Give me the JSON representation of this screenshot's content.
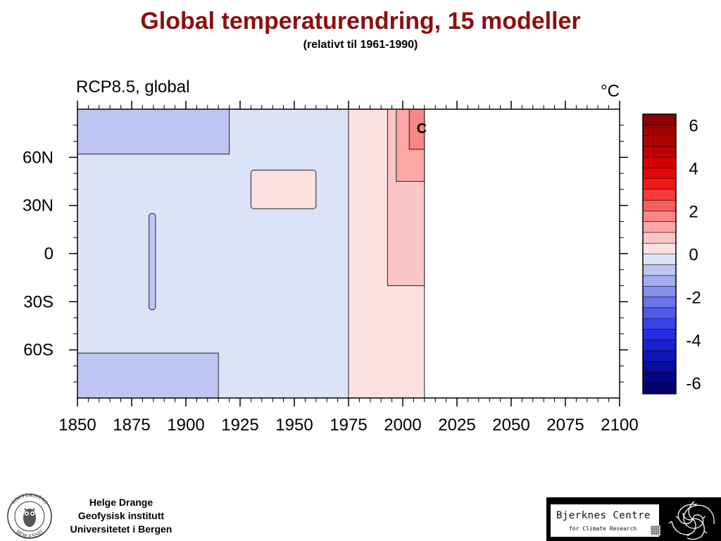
{
  "slide": {
    "title": "Global temperaturendring, 15 modeller",
    "subtitle": "(relativt til 1961-1990)"
  },
  "chart_data": {
    "type": "heatmap",
    "title": "RCP8.5, global",
    "units": "°C",
    "xlim": [
      1850,
      2100
    ],
    "ylim": [
      -90,
      90
    ],
    "x_ticks": [
      1850,
      1875,
      1900,
      1925,
      1950,
      1975,
      2000,
      2025,
      2050,
      2075,
      2100
    ],
    "x_tick_labels": [
      "1850",
      "1875",
      "1900",
      "1925",
      "1950",
      "1975",
      "2000",
      "2025",
      "2050",
      "2075",
      "2100"
    ],
    "y_ticks": [
      60,
      30,
      0,
      -30,
      -60
    ],
    "y_tick_labels": [
      "60N",
      "30N",
      "0",
      "30S",
      "60S"
    ],
    "data_extent_years": [
      1850,
      2010
    ],
    "contour_label": "C",
    "regions": [
      {
        "level": -0.25,
        "from": 1850,
        "to": 1975,
        "lat_from": -90,
        "lat_to": 90
      },
      {
        "level": -0.75,
        "from": 1850,
        "to": 1920,
        "lat_from": 62,
        "lat_to": 90
      },
      {
        "level": -0.75,
        "from": 1850,
        "to": 1915,
        "lat_from": -90,
        "lat_to": -62
      },
      {
        "level": -0.75,
        "from": 1883,
        "to": 1886,
        "lat_from": -35,
        "lat_to": 25
      },
      {
        "level": 0.25,
        "from": 1975,
        "to": 2010,
        "lat_from": -90,
        "lat_to": 90
      },
      {
        "level": 0.25,
        "from": 1930,
        "to": 1960,
        "lat_from": 28,
        "lat_to": 52
      },
      {
        "level": 0.75,
        "from": 1993,
        "to": 2010,
        "lat_from": -20,
        "lat_to": 90
      },
      {
        "level": 1.25,
        "from": 1997,
        "to": 2010,
        "lat_from": 45,
        "lat_to": 90
      },
      {
        "level": 1.75,
        "from": 2003,
        "to": 2010,
        "lat_from": 65,
        "lat_to": 90
      }
    ],
    "colorbar": {
      "min": -6.5,
      "max": 6.5,
      "step": 0.5,
      "tick_values": [
        6,
        4,
        2,
        0,
        -2,
        -4,
        -6
      ],
      "tick_labels": [
        "6",
        "4",
        "2",
        "0",
        "-2",
        "-4",
        "-6"
      ],
      "colors": [
        "#8b0000",
        "#9c0000",
        "#ae0000",
        "#c00000",
        "#d20000",
        "#e40505",
        "#f31818",
        "#f73a3a",
        "#f95e5e",
        "#fb8484",
        "#fca6a6",
        "#fdc6c6",
        "#fde0e0",
        "#dbe3f6",
        "#bfc6f3",
        "#a4acf0",
        "#8890ee",
        "#6c74eb",
        "#5159e8",
        "#3a42e6",
        "#262ee2",
        "#1a20d2",
        "#1014b8",
        "#080c9e",
        "#040884",
        "#00036e"
      ]
    }
  },
  "footer": {
    "author": "Helge Drange",
    "institute": "Geofysisk institutt",
    "university": "Universitetet i Bergen",
    "seal_text_top": "UNIVERSITAS",
    "seal_text_bottom": "BERGENSIS",
    "logo_name": "Bjerknes Centre",
    "logo_sub": "for Climate Research"
  }
}
